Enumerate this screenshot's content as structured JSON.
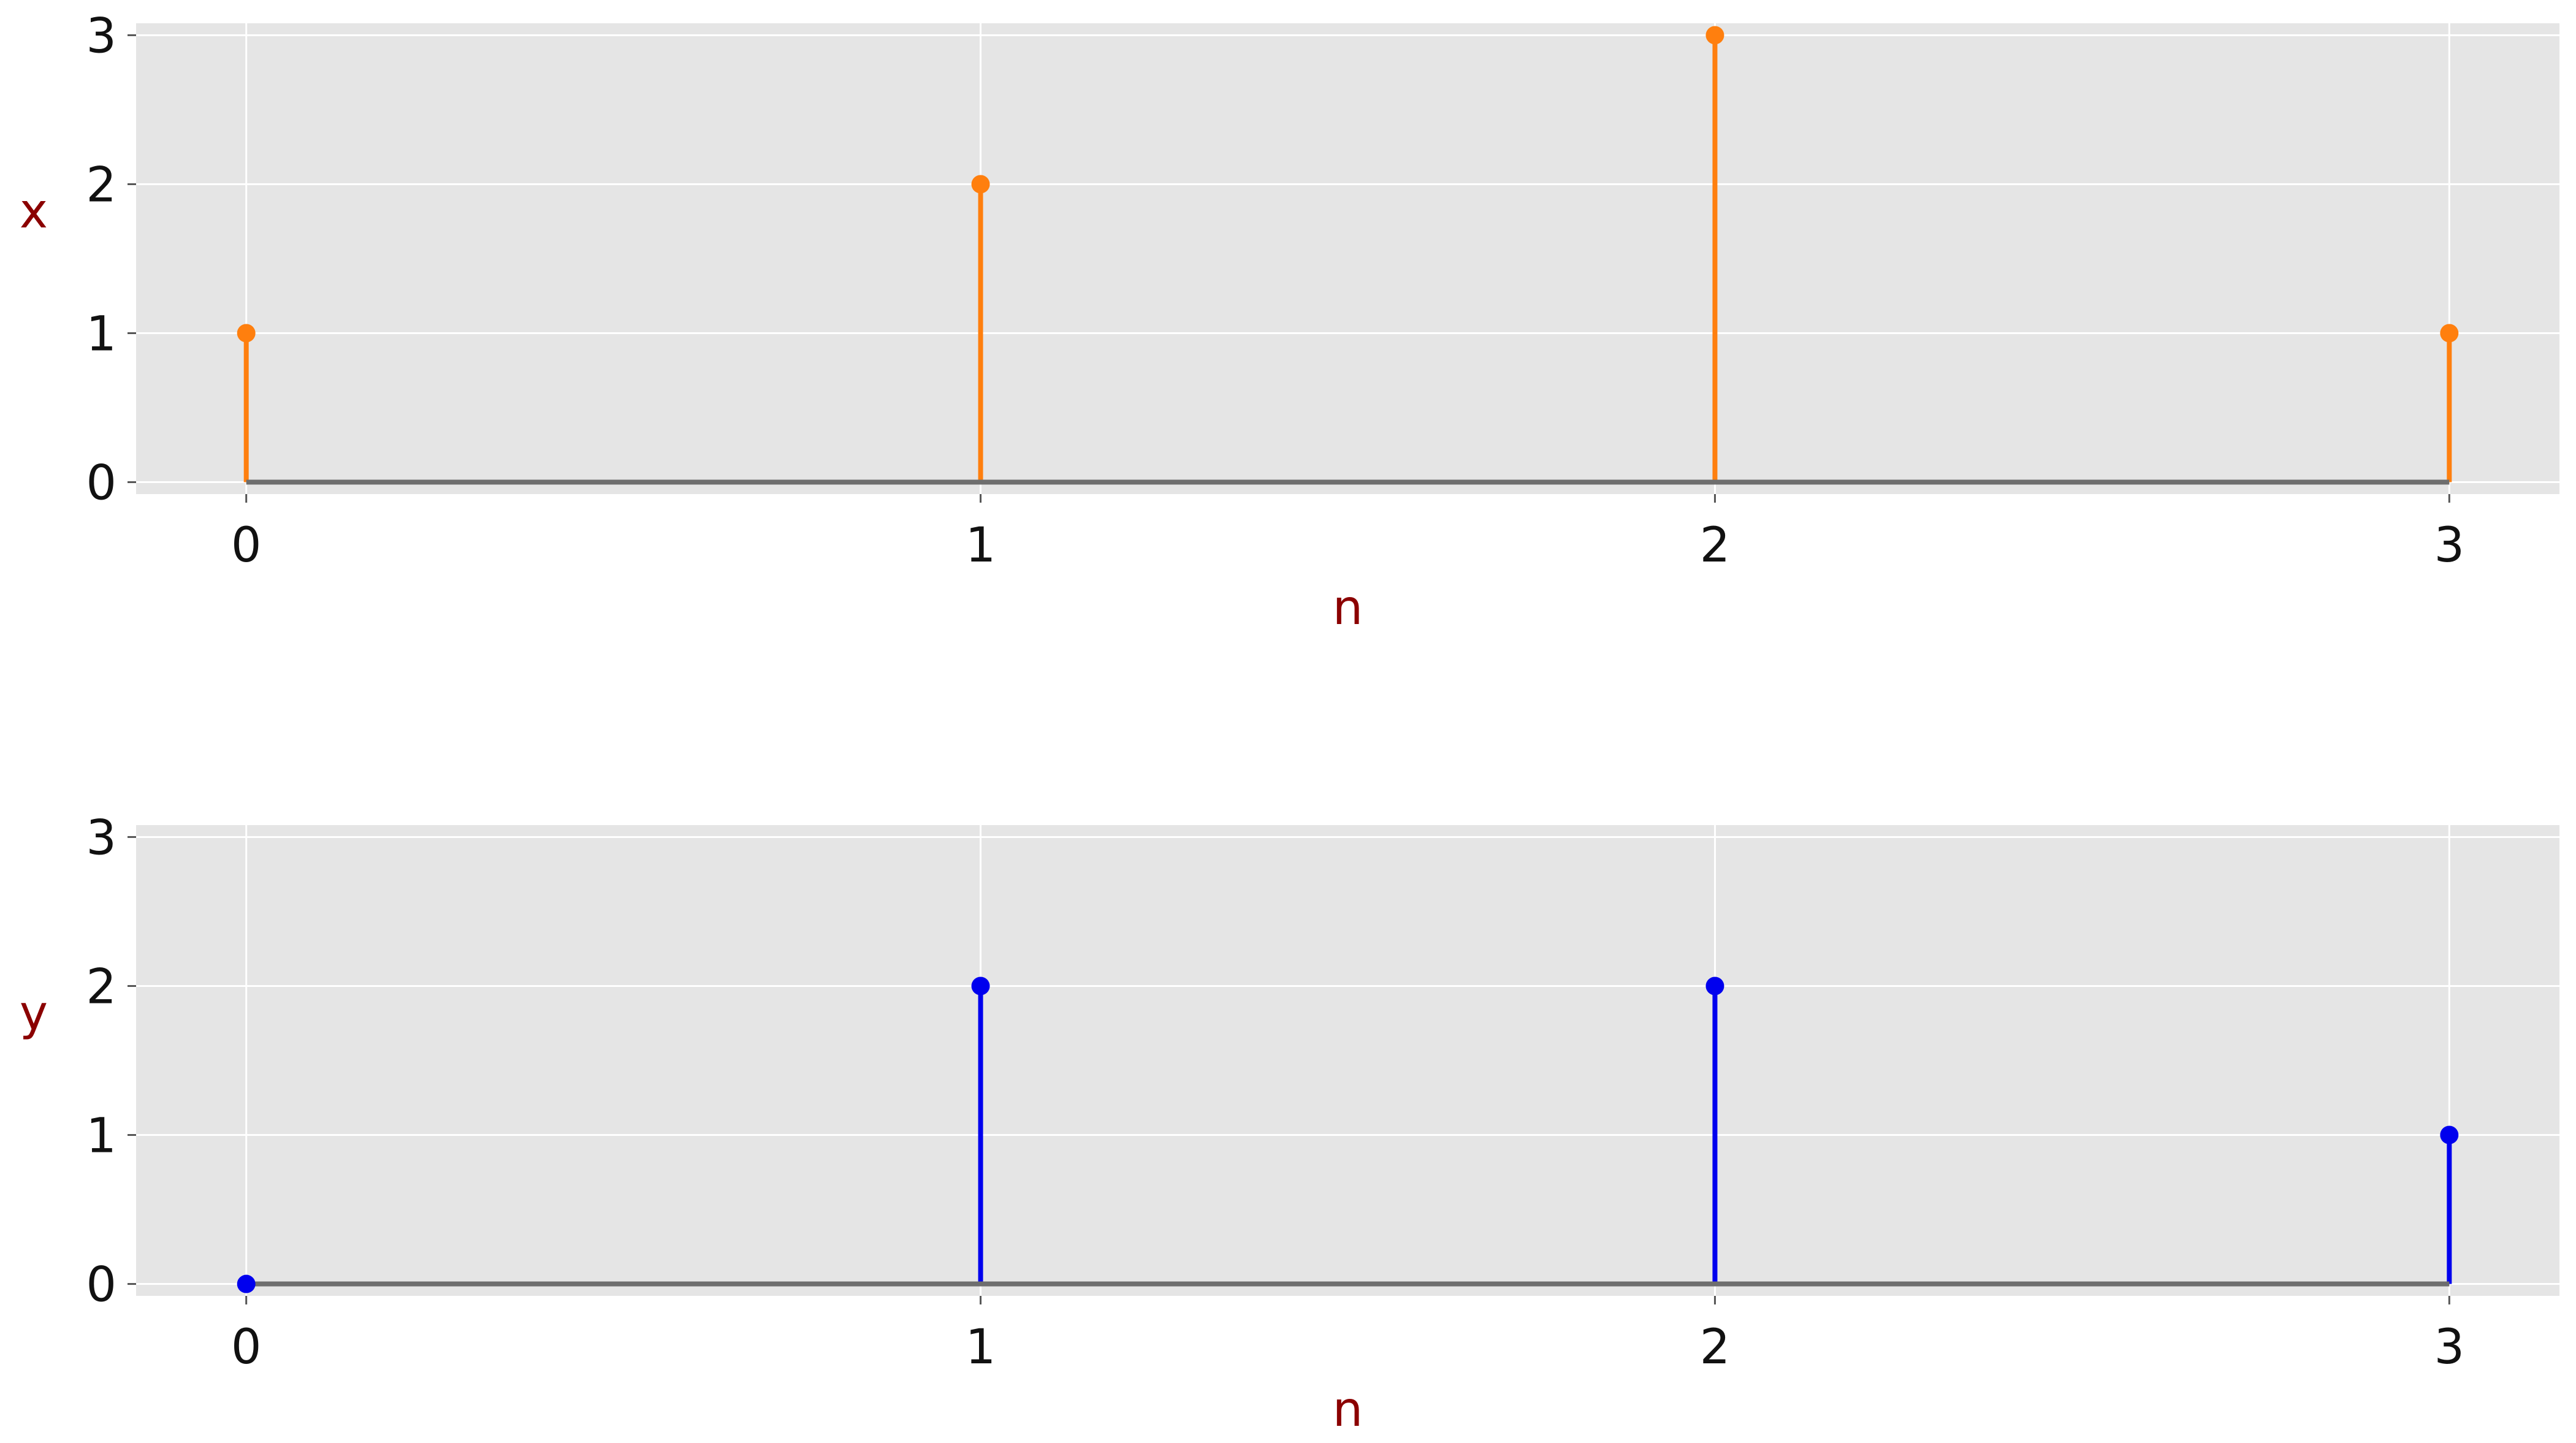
{
  "chart_data": [
    {
      "type": "stem",
      "x": [
        0,
        1,
        2,
        3
      ],
      "values": [
        1,
        2,
        3,
        1
      ],
      "xlabel": "n",
      "ylabel": "x",
      "xlim": [
        -0.15,
        3.15
      ],
      "ylim": [
        -0.08,
        3.08
      ],
      "xticks": [
        "0",
        "1",
        "2",
        "3"
      ],
      "yticks": [
        "0",
        "1",
        "2",
        "3"
      ],
      "grid": true,
      "color": "#ff7f0e",
      "baseline_color": "#6e6e6e",
      "label_color": "#8b0000",
      "background": "#e5e5e5"
    },
    {
      "type": "stem",
      "x": [
        0,
        1,
        2,
        3
      ],
      "values": [
        0,
        2,
        2,
        1
      ],
      "xlabel": "n",
      "ylabel": "y",
      "xlim": [
        -0.15,
        3.15
      ],
      "ylim": [
        -0.08,
        3.08
      ],
      "xticks": [
        "0",
        "1",
        "2",
        "3"
      ],
      "yticks": [
        "0",
        "1",
        "2",
        "3"
      ],
      "grid": true,
      "color": "#0000ee",
      "baseline_color": "#6e6e6e",
      "label_color": "#8b0000",
      "background": "#e5e5e5"
    }
  ]
}
